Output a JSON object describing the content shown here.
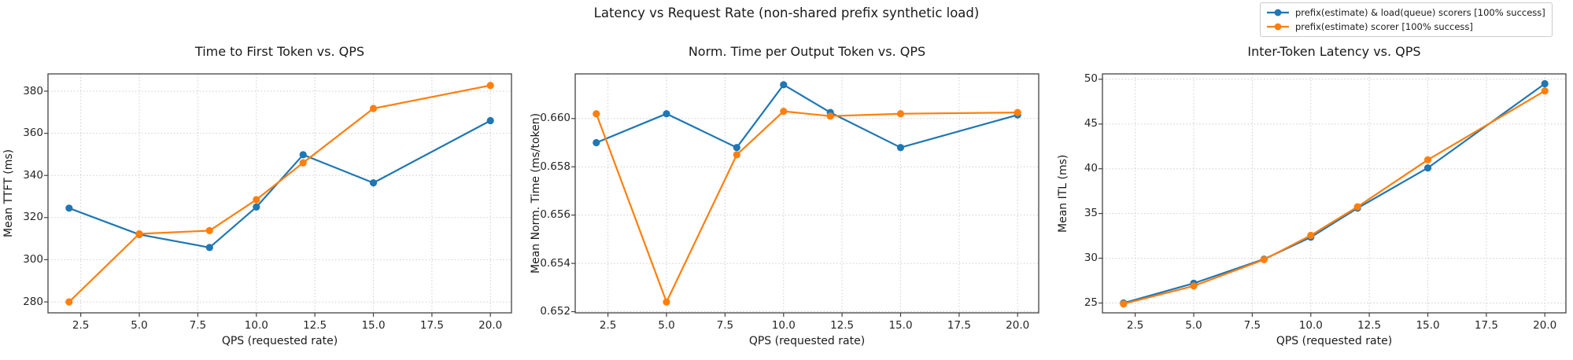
{
  "figure": {
    "suptitle": "Latency vs Request Rate (non-shared prefix synthetic load)"
  },
  "colors": {
    "blue": "#1f77b4",
    "orange": "#ff7f0e",
    "grid": "#cdcdcd",
    "spine": "#424242",
    "text": "#262626"
  },
  "legend": {
    "entries": [
      {
        "label": "prefix(estimate) & load(queue) scorers [100% success]",
        "color_key": "blue"
      },
      {
        "label": "prefix(estimate) scorer [100% success]",
        "color_key": "orange"
      }
    ]
  },
  "chart_data": [
    {
      "type": "line",
      "title": "Time to First Token vs. QPS",
      "xlabel": "QPS (requested rate)",
      "ylabel": "Mean TTFT (ms)",
      "x": [
        2,
        5,
        8,
        10,
        12,
        15,
        20
      ],
      "series": [
        {
          "name": "prefix(estimate) & load(queue) scorers [100% success]",
          "color_key": "blue",
          "values": [
            324.5,
            312.0,
            305.8,
            325.0,
            349.8,
            336.5,
            366.0
          ]
        },
        {
          "name": "prefix(estimate) scorer [100% success]",
          "color_key": "orange",
          "values": [
            280.0,
            312.3,
            313.8,
            328.5,
            346.0,
            371.8,
            382.7
          ]
        }
      ],
      "xlim": [
        1.1,
        20.9
      ],
      "ylim": [
        274.8,
        388.2
      ],
      "xticks": [
        "2.5",
        "5.0",
        "7.5",
        "10.0",
        "12.5",
        "15.0",
        "17.5",
        "20.0"
      ],
      "yticks": [
        "280",
        "300",
        "320",
        "340",
        "360",
        "380"
      ],
      "grid": true,
      "legend_position": "figure-top-right"
    },
    {
      "type": "line",
      "title": "Norm. Time per Output Token vs. QPS",
      "xlabel": "QPS (requested rate)",
      "ylabel": "Mean Norm. Time (ms/token)",
      "x": [
        2,
        5,
        8,
        10,
        12,
        15,
        20
      ],
      "series": [
        {
          "name": "prefix(estimate) & load(queue) scorers [100% success]",
          "color_key": "blue",
          "values": [
            0.659,
            0.6602,
            0.6588,
            0.6614,
            0.66025,
            0.6588,
            0.66015
          ]
        },
        {
          "name": "prefix(estimate) scorer [100% success]",
          "color_key": "orange",
          "values": [
            0.6602,
            0.6524,
            0.6585,
            0.6603,
            0.6601,
            0.6602,
            0.66025
          ]
        }
      ],
      "xlim": [
        1.1,
        20.9
      ],
      "ylim": [
        0.65195,
        0.66185
      ],
      "xticks": [
        "2.5",
        "5.0",
        "7.5",
        "10.0",
        "12.5",
        "15.0",
        "17.5",
        "20.0"
      ],
      "yticks": [
        "0.652",
        "0.654",
        "0.656",
        "0.658",
        "0.660"
      ],
      "grid": true,
      "legend_position": "figure-top-right"
    },
    {
      "type": "line",
      "title": "Inter-Token Latency vs. QPS",
      "xlabel": "QPS (requested rate)",
      "ylabel": "Mean ITL (ms)",
      "x": [
        2,
        5,
        8,
        10,
        12,
        15,
        20
      ],
      "series": [
        {
          "name": "prefix(estimate) & load(queue) scorers [100% success]",
          "color_key": "blue",
          "values": [
            25.0,
            27.2,
            29.9,
            32.35,
            35.6,
            40.1,
            49.5
          ]
        },
        {
          "name": "prefix(estimate) scorer [100% success]",
          "color_key": "orange",
          "values": [
            24.9,
            26.9,
            29.85,
            32.55,
            35.75,
            41.0,
            48.7
          ]
        }
      ],
      "xlim": [
        1.1,
        20.9
      ],
      "ylim": [
        23.9,
        50.6
      ],
      "xticks": [
        "2.5",
        "5.0",
        "7.5",
        "10.0",
        "12.5",
        "15.0",
        "17.5",
        "20.0"
      ],
      "yticks": [
        "25",
        "30",
        "35",
        "40",
        "45",
        "50"
      ],
      "grid": true,
      "legend_position": "figure-top-right"
    }
  ]
}
